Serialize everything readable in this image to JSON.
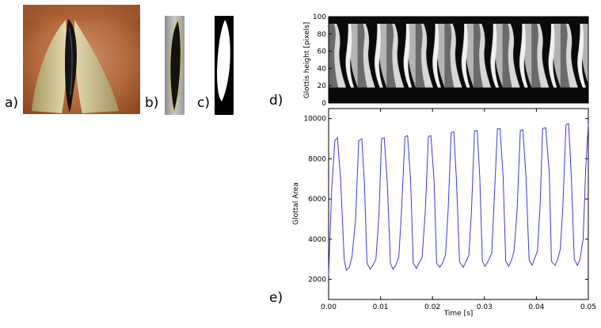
{
  "figure": {
    "panel_labels": [
      "a)",
      "b)",
      "c)",
      "d)",
      "e)"
    ]
  },
  "panel_d": {
    "ylabel": "Glottis height [pixels]",
    "yticks": [
      "100",
      "80",
      "60",
      "40",
      "20",
      "0"
    ]
  },
  "chart_data": {
    "type": "line",
    "xlabel": "Time [s]",
    "ylabel": "Glottal Area",
    "xlim": [
      0.0,
      0.05
    ],
    "ylim": [
      1000,
      10500
    ],
    "xticks": [
      "0.00",
      "0.01",
      "0.02",
      "0.03",
      "0.04",
      "0.05"
    ],
    "yticks": [
      "2000",
      "4000",
      "6000",
      "8000",
      "10000"
    ],
    "series": [
      {
        "color": "#3b3bdc",
        "x": [
          0.0,
          0.0006,
          0.0012,
          0.0017,
          0.0023,
          0.003,
          0.0034,
          0.004,
          0.0045,
          0.0052,
          0.0058,
          0.0064,
          0.0069,
          0.0074,
          0.008,
          0.0085,
          0.0091,
          0.0097,
          0.0102,
          0.0107,
          0.0113,
          0.0119,
          0.0124,
          0.0129,
          0.0135,
          0.014,
          0.0147,
          0.0152,
          0.0158,
          0.0163,
          0.0169,
          0.0174,
          0.018,
          0.0186,
          0.0192,
          0.0197,
          0.0203,
          0.0208,
          0.0214,
          0.0219,
          0.0225,
          0.023,
          0.0236,
          0.0241,
          0.0246,
          0.0252,
          0.0259,
          0.0263,
          0.027,
          0.0275,
          0.0281,
          0.0286,
          0.0291,
          0.0296,
          0.0301,
          0.0307,
          0.0314,
          0.0318,
          0.0325,
          0.033,
          0.0336,
          0.0341,
          0.0347,
          0.0352,
          0.0357,
          0.0363,
          0.0369,
          0.0374,
          0.038,
          0.0386,
          0.0392,
          0.0396,
          0.0402,
          0.0407,
          0.0412,
          0.0418,
          0.0425,
          0.0429,
          0.0436,
          0.0441,
          0.0446,
          0.0451,
          0.0457,
          0.0462,
          0.0467,
          0.0473,
          0.0479,
          0.0484,
          0.049,
          0.0495,
          0.05
        ],
        "y": [
          2200,
          6500,
          8900,
          9050,
          7000,
          3000,
          2450,
          2600,
          3100,
          5000,
          8900,
          9000,
          6700,
          2800,
          2500,
          2700,
          3000,
          5200,
          9000,
          9050,
          6800,
          2800,
          2500,
          2700,
          3100,
          5200,
          9100,
          9150,
          6900,
          2800,
          2550,
          2800,
          3100,
          5300,
          9100,
          9150,
          6900,
          2800,
          2600,
          2800,
          3200,
          5400,
          9300,
          9350,
          7000,
          2900,
          2600,
          2800,
          3200,
          5400,
          9400,
          9400,
          7100,
          2900,
          2650,
          2900,
          3300,
          5500,
          9500,
          9500,
          7100,
          2900,
          2650,
          2950,
          3400,
          5500,
          9400,
          9450,
          7100,
          2950,
          2700,
          3000,
          3400,
          5600,
          9500,
          9550,
          7200,
          2900,
          2700,
          3000,
          3500,
          5700,
          9700,
          9750,
          7200,
          3000,
          2700,
          3000,
          4000,
          7500,
          9750
        ]
      }
    ]
  }
}
